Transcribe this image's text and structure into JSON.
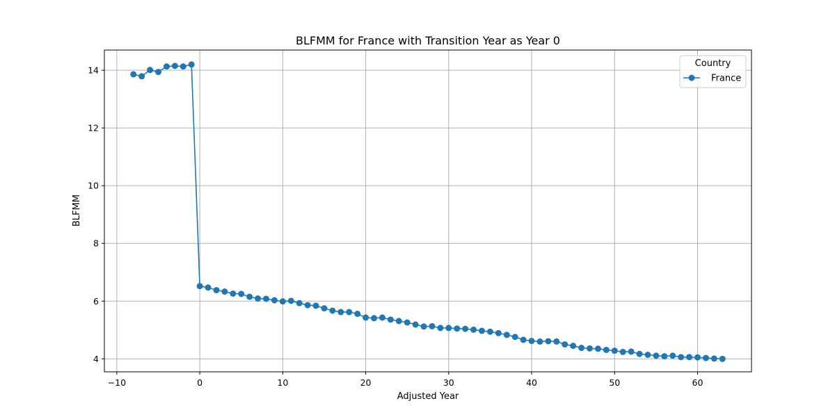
{
  "chart_data": {
    "type": "line",
    "title": "BLFMM for France with Transition Year as Year 0",
    "xlabel": "Adjusted Year",
    "ylabel": "BLFMM",
    "xlim": [
      -11.5,
      66.5
    ],
    "ylim": [
      3.55,
      14.7
    ],
    "xticks": [
      -10,
      0,
      10,
      20,
      30,
      40,
      50,
      60
    ],
    "xtick_labels": [
      "−10",
      "0",
      "10",
      "20",
      "30",
      "40",
      "50",
      "60"
    ],
    "yticks": [
      4,
      6,
      8,
      10,
      12,
      14
    ],
    "ytick_labels": [
      "4",
      "6",
      "8",
      "10",
      "12",
      "14"
    ],
    "grid": true,
    "legend": {
      "title": "Country",
      "position": "top-right"
    },
    "series": [
      {
        "name": "France",
        "color": "#1f77b4",
        "marker": "circle",
        "x": [
          -8,
          -7,
          -6,
          -5,
          -4,
          -3,
          -2,
          -1,
          0,
          1,
          2,
          3,
          4,
          5,
          6,
          7,
          8,
          9,
          10,
          11,
          12,
          13,
          14,
          15,
          16,
          17,
          18,
          19,
          20,
          21,
          22,
          23,
          24,
          25,
          26,
          27,
          28,
          29,
          30,
          31,
          32,
          33,
          34,
          35,
          36,
          37,
          38,
          39,
          40,
          41,
          42,
          43,
          44,
          45,
          46,
          47,
          48,
          49,
          50,
          51,
          52,
          53,
          54,
          55,
          56,
          57,
          58,
          59,
          60,
          61,
          62,
          63
        ],
        "y": [
          13.86,
          13.79,
          14.01,
          13.94,
          14.13,
          14.15,
          14.13,
          14.2,
          6.52,
          6.47,
          6.38,
          6.33,
          6.26,
          6.25,
          6.15,
          6.09,
          6.08,
          6.03,
          5.99,
          6.01,
          5.93,
          5.86,
          5.84,
          5.75,
          5.67,
          5.62,
          5.62,
          5.56,
          5.43,
          5.41,
          5.43,
          5.36,
          5.31,
          5.26,
          5.19,
          5.12,
          5.13,
          5.07,
          5.07,
          5.05,
          5.04,
          5.01,
          4.97,
          4.94,
          4.89,
          4.83,
          4.76,
          4.66,
          4.62,
          4.6,
          4.61,
          4.6,
          4.5,
          4.45,
          4.38,
          4.36,
          4.35,
          4.31,
          4.28,
          4.24,
          4.25,
          4.17,
          4.14,
          4.11,
          4.09,
          4.11,
          4.06,
          4.06,
          4.05,
          4.03,
          4.01,
          4.0
        ]
      }
    ]
  }
}
